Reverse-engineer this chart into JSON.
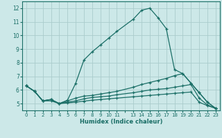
{
  "xlabel": "Humidex (Indice chaleur)",
  "bg_color": "#cce8e8",
  "grid_color": "#aacccc",
  "line_color": "#1a6e66",
  "xlim": [
    -0.5,
    23.5
  ],
  "ylim": [
    4.5,
    12.5
  ],
  "yticks": [
    5,
    6,
    7,
    8,
    9,
    10,
    11,
    12
  ],
  "lines": [
    {
      "x": [
        0,
        1,
        2,
        3,
        4,
        5,
        6,
        7,
        8,
        9,
        10,
        11,
        13,
        14,
        15,
        16,
        17,
        18,
        19,
        20,
        21,
        22,
        23
      ],
      "y": [
        6.3,
        5.9,
        5.2,
        5.2,
        5.0,
        5.25,
        6.5,
        8.2,
        8.8,
        9.3,
        9.8,
        10.3,
        11.2,
        11.85,
        12.0,
        11.3,
        10.5,
        7.5,
        7.2,
        6.5,
        5.8,
        5.1,
        4.65
      ]
    },
    {
      "x": [
        0,
        1,
        2,
        3,
        4,
        5,
        6,
        7,
        8,
        9,
        10,
        11,
        13,
        14,
        15,
        16,
        17,
        18,
        19,
        20,
        21,
        22,
        23
      ],
      "y": [
        6.3,
        5.9,
        5.2,
        5.3,
        5.0,
        5.2,
        5.4,
        5.55,
        5.6,
        5.7,
        5.8,
        5.9,
        6.2,
        6.4,
        6.55,
        6.7,
        6.85,
        7.05,
        7.2,
        6.5,
        5.8,
        5.1,
        4.65
      ]
    },
    {
      "x": [
        0,
        1,
        2,
        3,
        4,
        5,
        6,
        7,
        8,
        9,
        10,
        11,
        13,
        14,
        15,
        16,
        17,
        18,
        19,
        20,
        21,
        22,
        23
      ],
      "y": [
        6.3,
        5.9,
        5.2,
        5.3,
        5.0,
        5.1,
        5.2,
        5.35,
        5.45,
        5.5,
        5.55,
        5.65,
        5.8,
        5.9,
        6.0,
        6.05,
        6.1,
        6.2,
        6.3,
        6.4,
        5.4,
        4.9,
        4.65
      ]
    },
    {
      "x": [
        0,
        1,
        2,
        3,
        4,
        5,
        6,
        7,
        8,
        9,
        10,
        11,
        13,
        14,
        15,
        16,
        17,
        18,
        19,
        20,
        21,
        22,
        23
      ],
      "y": [
        6.3,
        5.9,
        5.2,
        5.3,
        5.0,
        5.05,
        5.1,
        5.18,
        5.25,
        5.3,
        5.35,
        5.4,
        5.5,
        5.55,
        5.6,
        5.65,
        5.7,
        5.75,
        5.8,
        5.85,
        5.1,
        4.85,
        4.65
      ]
    }
  ]
}
